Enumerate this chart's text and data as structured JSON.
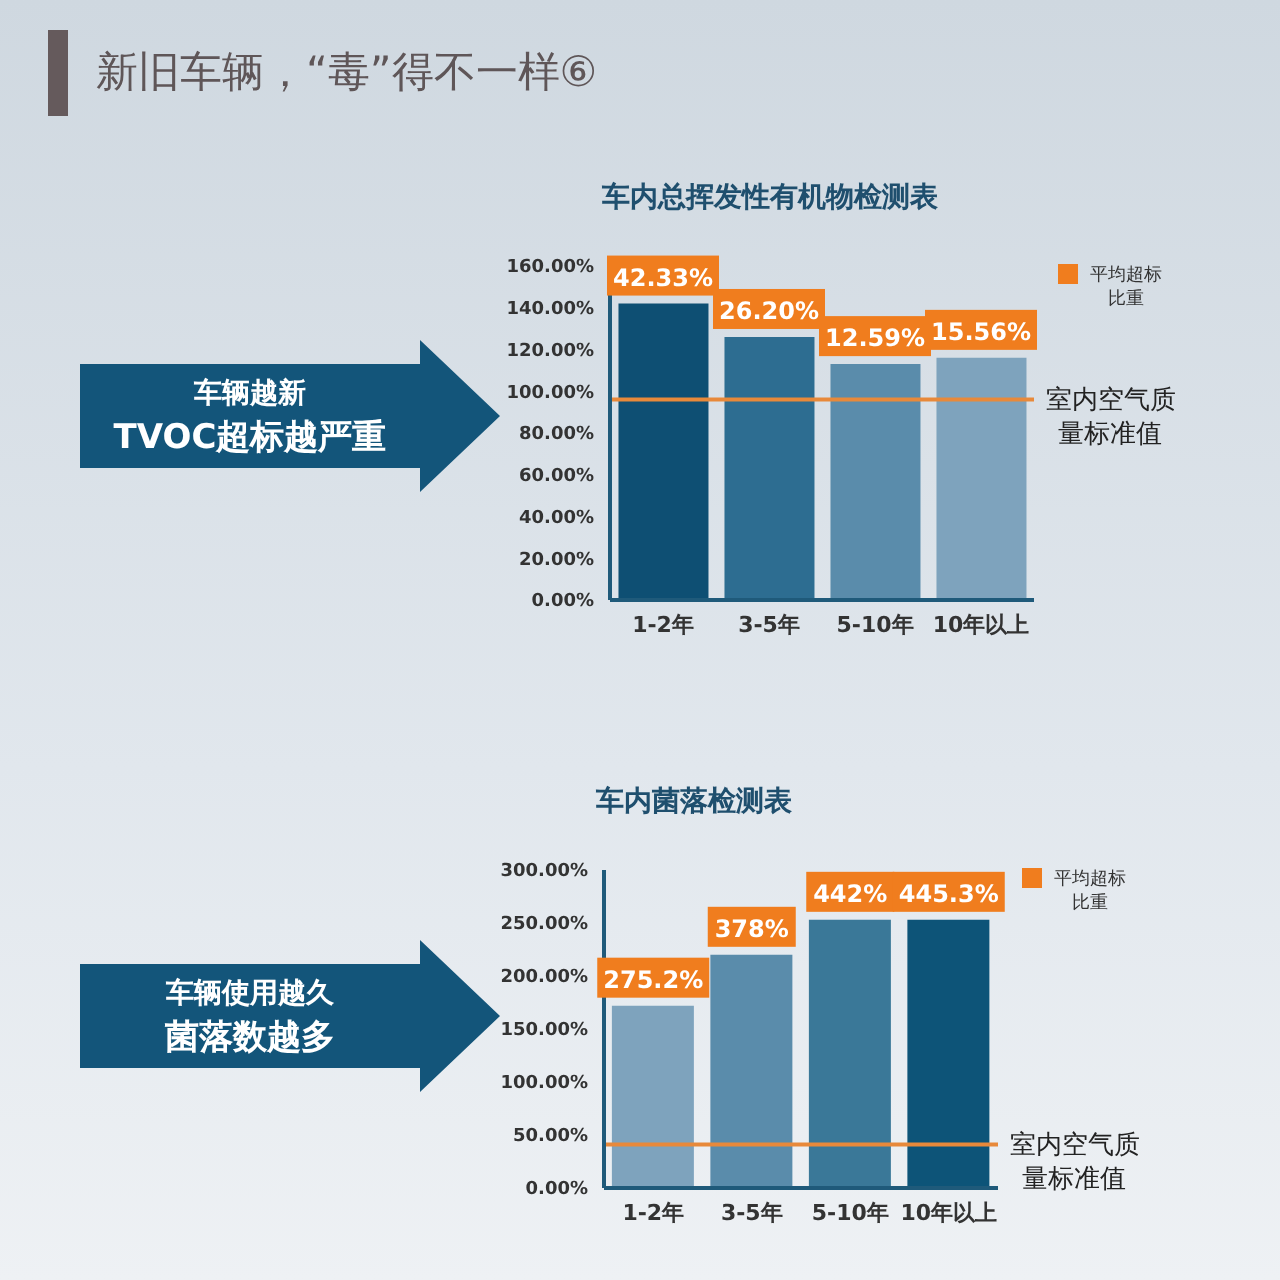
{
  "chart_data": [
    {
      "type": "bar",
      "title": "新旧车辆，“毒”得不一样⑥",
      "subtitle": "车内总挥发性有机物检测表",
      "categories": [
        "1-2年",
        "3-5年",
        "5-10年",
        "10年以上"
      ],
      "values": [
        142,
        126,
        113,
        116
      ],
      "colors": [
        "#0e4f73",
        "#2d6d91",
        "#5a8cab",
        "#7ea3bd"
      ],
      "ylim": [
        0,
        160
      ],
      "yticks": [
        {
          "value": 0,
          "label": "0.00%"
        },
        {
          "value": 20,
          "label": "20.00%"
        },
        {
          "value": 40,
          "label": "40.00%"
        },
        {
          "value": 60,
          "label": "60.00%"
        },
        {
          "value": 80,
          "label": "80.00%"
        },
        {
          "value": 100,
          "label": "100.00%"
        },
        {
          "value": 120,
          "label": "120.00%"
        },
        {
          "value": 140,
          "label": "140.00%"
        },
        {
          "value": 160,
          "label": "160.00%"
        }
      ],
      "ref_lines": [
        {
          "axis": "y",
          "value": 96,
          "label": "室内空气质量标准值",
          "color": "#e8893a"
        }
      ],
      "annotations": [
        "车辆越新",
        "TVOC超标越严重",
        "平均超标比重",
        {
          "text": "42.33%",
          "x": "1-2年",
          "y": 142
        },
        {
          "text": "26.20%",
          "x": "3-5年",
          "y": 126
        },
        {
          "text": "12.59%",
          "x": "5-10年",
          "y": 113
        },
        {
          "text": "15.56%",
          "x": "10年以上",
          "y": 116
        }
      ]
    },
    {
      "type": "bar",
      "title": "车内菌落检测表",
      "categories": [
        "1-2年",
        "3-5年",
        "5-10年",
        "10年以上"
      ],
      "values": [
        172,
        220,
        253,
        253
      ],
      "colors": [
        "#7ea3bd",
        "#5a8cab",
        "#3a7898",
        "#0d5478"
      ],
      "ylim": [
        0,
        300
      ],
      "yticks": [
        {
          "value": 0,
          "label": "0.00%"
        },
        {
          "value": 50,
          "label": "50.00%"
        },
        {
          "value": 100,
          "label": "100.00%"
        },
        {
          "value": 150,
          "label": "150.00%"
        },
        {
          "value": 200,
          "label": "200.00%"
        },
        {
          "value": 250,
          "label": "250.00%"
        },
        {
          "value": 300,
          "label": "300.00%"
        }
      ],
      "ref_lines": [
        {
          "axis": "y",
          "value": 41,
          "label": "室内空气质量标准值",
          "color": "#e8893a"
        }
      ],
      "annotations": [
        "车辆使用越久",
        "菌落数越多",
        "平均超标比重",
        {
          "text": "275.2%",
          "x": "1-2年",
          "y": 172
        },
        {
          "text": "378%",
          "x": "3-5年",
          "y": 220
        },
        {
          "text": "442%",
          "x": "5-10年",
          "y": 253
        },
        {
          "text": "445.3%",
          "x": "10年以上",
          "y": 253
        }
      ]
    }
  ]
}
